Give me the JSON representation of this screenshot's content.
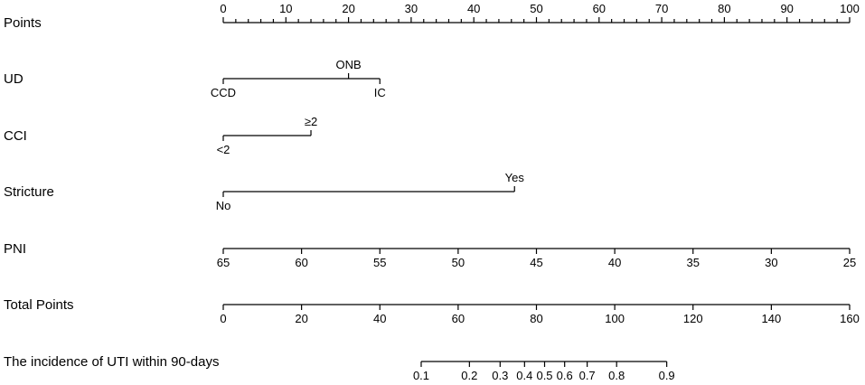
{
  "chart_data": {
    "type": "nomogram",
    "rows": [
      {
        "label": "Points",
        "kind": "scale",
        "labels_side": "above",
        "ticks": [
          {
            "value": 0,
            "label": "0"
          },
          {
            "value": 10,
            "label": "10"
          },
          {
            "value": 20,
            "label": "20"
          },
          {
            "value": 30,
            "label": "30"
          },
          {
            "value": 40,
            "label": "40"
          },
          {
            "value": 50,
            "label": "50"
          },
          {
            "value": 60,
            "label": "60"
          },
          {
            "value": 70,
            "label": "70"
          },
          {
            "value": 80,
            "label": "80"
          },
          {
            "value": 90,
            "label": "90"
          },
          {
            "value": 100,
            "label": "100"
          }
        ],
        "minor_step": 2
      },
      {
        "label": "UD",
        "kind": "categorical",
        "levels": [
          {
            "label": "CCD",
            "points": 0,
            "side": "below"
          },
          {
            "label": "ONB",
            "points": 20,
            "side": "above"
          },
          {
            "label": "IC",
            "points": 25,
            "side": "below"
          }
        ]
      },
      {
        "label": "CCI",
        "kind": "categorical",
        "levels": [
          {
            "label": "<2",
            "points": 0,
            "side": "below"
          },
          {
            "label": "≥2",
            "points": 14,
            "side": "above"
          }
        ]
      },
      {
        "label": "Stricture",
        "kind": "categorical",
        "levels": [
          {
            "label": "No",
            "points": 0,
            "side": "below"
          },
          {
            "label": "Yes",
            "points": 46.5,
            "side": "above"
          }
        ]
      },
      {
        "label": "PNI",
        "kind": "scale",
        "labels_side": "below",
        "ticks": [
          {
            "value": 65,
            "points": 0,
            "label": "65"
          },
          {
            "value": 60,
            "points": 12.5,
            "label": "60"
          },
          {
            "value": 55,
            "points": 25,
            "label": "55"
          },
          {
            "value": 50,
            "points": 37.5,
            "label": "50"
          },
          {
            "value": 45,
            "points": 50,
            "label": "45"
          },
          {
            "value": 40,
            "points": 62.5,
            "label": "40"
          },
          {
            "value": 35,
            "points": 75,
            "label": "35"
          },
          {
            "value": 30,
            "points": 87.5,
            "label": "30"
          },
          {
            "value": 25,
            "points": 100,
            "label": "25"
          }
        ]
      },
      {
        "label": "Total Points",
        "kind": "scale",
        "labels_side": "below",
        "ticks": [
          {
            "value": 0,
            "points": 0,
            "label": "0"
          },
          {
            "value": 20,
            "points": 12.5,
            "label": "20"
          },
          {
            "value": 40,
            "points": 25,
            "label": "40"
          },
          {
            "value": 60,
            "points": 37.5,
            "label": "60"
          },
          {
            "value": 80,
            "points": 50,
            "label": "80"
          },
          {
            "value": 100,
            "points": 62.5,
            "label": "100"
          },
          {
            "value": 120,
            "points": 75,
            "label": "120"
          },
          {
            "value": 140,
            "points": 87.5,
            "label": "140"
          },
          {
            "value": 160,
            "points": 100,
            "label": "160"
          }
        ]
      },
      {
        "label": "The incidence of UTI within 90-days",
        "kind": "scale",
        "labels_side": "below",
        "ticks": [
          {
            "value": 0.1,
            "points": 31.6,
            "label": "0.1"
          },
          {
            "value": 0.2,
            "points": 39.3,
            "label": "0.2"
          },
          {
            "value": 0.3,
            "points": 44.2,
            "label": "0.3"
          },
          {
            "value": 0.4,
            "points": 48.1,
            "label": "0.4"
          },
          {
            "value": 0.5,
            "points": 51.3,
            "label": "0.5"
          },
          {
            "value": 0.6,
            "points": 54.5,
            "label": "0.6"
          },
          {
            "value": 0.7,
            "points": 58.1,
            "label": "0.7"
          },
          {
            "value": 0.8,
            "points": 62.8,
            "label": "0.8"
          },
          {
            "value": 0.9,
            "points": 70.8,
            "label": "0.9"
          }
        ]
      }
    ]
  }
}
